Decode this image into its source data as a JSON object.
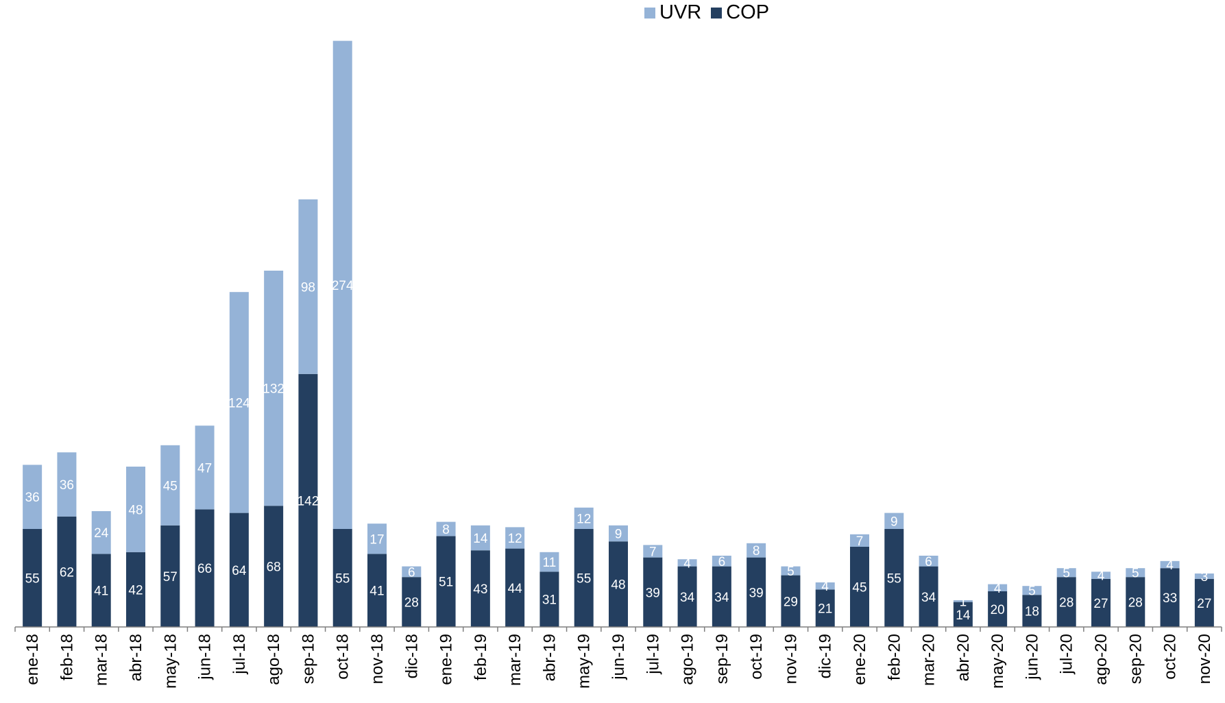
{
  "chart_data": {
    "type": "bar",
    "stacked": true,
    "title": "",
    "xlabel": "",
    "ylabel": "",
    "ylim": [
      0,
      335
    ],
    "grid": false,
    "legend": {
      "position": "top-center"
    },
    "categories": [
      "ene-18",
      "feb-18",
      "mar-18",
      "abr-18",
      "may-18",
      "jun-18",
      "jul-18",
      "ago-18",
      "sep-18",
      "oct-18",
      "nov-18",
      "dic-18",
      "ene-19",
      "feb-19",
      "mar-19",
      "abr-19",
      "may-19",
      "jun-19",
      "jul-19",
      "ago-19",
      "sep-19",
      "oct-19",
      "nov-19",
      "dic-19",
      "ene-20",
      "feb-20",
      "mar-20",
      "abr-20",
      "may-20",
      "jun-20",
      "jul-20",
      "ago-20",
      "sep-20",
      "oct-20",
      "nov-20"
    ],
    "series": [
      {
        "name": "COP",
        "color": "#243F60",
        "label_color": "#ffffff",
        "values": [
          55,
          62,
          41,
          42,
          57,
          66,
          64,
          68,
          142,
          55,
          41,
          28,
          51,
          43,
          44,
          31,
          55,
          48,
          39,
          34,
          34,
          39,
          29,
          21,
          45,
          55,
          34,
          14,
          20,
          18,
          28,
          27,
          28,
          33,
          27
        ]
      },
      {
        "name": "UVR",
        "color": "#95B3D7",
        "label_color": "#ffffff",
        "values": [
          36,
          36,
          24,
          48,
          45,
          47,
          124,
          132,
          98,
          274,
          17,
          6,
          8,
          14,
          12,
          11,
          12,
          9,
          7,
          4,
          6,
          8,
          5,
          4,
          7,
          9,
          6,
          1,
          4,
          5,
          5,
          4,
          5,
          4,
          3
        ]
      }
    ]
  },
  "legend": {
    "uvr_label": "UVR",
    "cop_label": "COP"
  }
}
